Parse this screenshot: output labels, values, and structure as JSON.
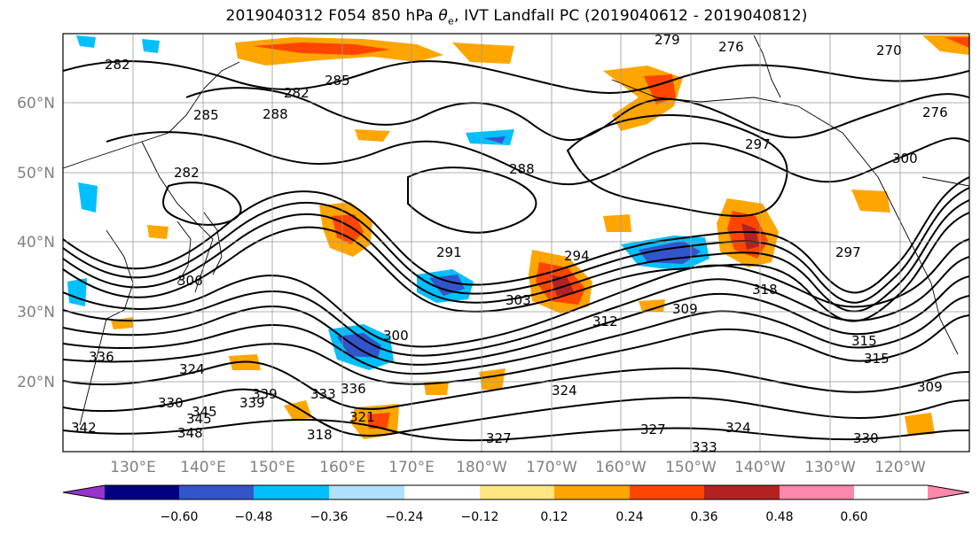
{
  "title": {
    "prefix": "2019040312 F054 850 hPa ",
    "theta": "θ",
    "theta_sub": "e",
    "suffix": ", IVT Landfall PC (2019040612 - 2019040812)"
  },
  "map": {
    "lat_labels": [
      "60°N",
      "50°N",
      "40°N",
      "30°N",
      "20°N"
    ],
    "lon_labels": [
      "130°E",
      "140°E",
      "150°E",
      "160°E",
      "170°E",
      "180°W",
      "170°W",
      "160°W",
      "150°W",
      "140°W",
      "130°W",
      "120°W"
    ],
    "contour_labels": [
      "282",
      "285",
      "282",
      "285",
      "288",
      "282",
      "279",
      "276",
      "270",
      "276",
      "297",
      "300",
      "288",
      "291",
      "294",
      "297",
      "300",
      "303",
      "306",
      "309",
      "312",
      "315",
      "318",
      "336",
      "324",
      "330",
      "333",
      "336",
      "339",
      "342",
      "345",
      "348",
      "327",
      "324",
      "327",
      "315",
      "309",
      "333",
      "330",
      "339",
      "345",
      "318",
      "321",
      "324"
    ]
  },
  "colorbar": {
    "colors": [
      "#9933cc",
      "#000080",
      "#3355cc",
      "#00bfff",
      "#b0e0ff",
      "#ffffff",
      "#ffe680",
      "#ffa500",
      "#ff4500",
      "#b22222",
      "#ff88aa"
    ],
    "tick_labels": [
      "−0.60",
      "−0.48",
      "−0.36",
      "−0.24",
      "−0.12",
      "0.12",
      "0.24",
      "0.36",
      "0.48",
      "0.60"
    ]
  },
  "chart_data": {
    "type": "heatmap",
    "title": "2019040312 F054 850 hPa θe, IVT Landfall PC (2019040612 - 2019040812)",
    "fill_variable": "IVT Landfall PC",
    "contour_variable": "850 hPa θe",
    "colorbar_levels": [
      -0.6,
      -0.48,
      -0.36,
      -0.24,
      -0.12,
      0.12,
      0.24,
      0.36,
      0.48,
      0.6
    ],
    "lat_range": [
      10,
      70
    ],
    "lon_range": [
      120,
      250
    ],
    "grid": true
  }
}
